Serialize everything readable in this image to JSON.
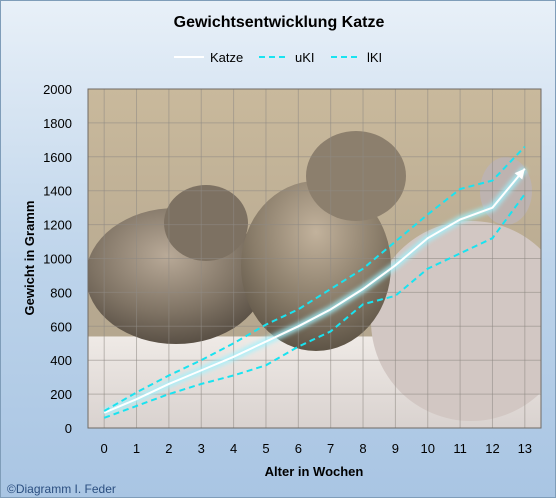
{
  "chart_data": {
    "type": "line",
    "title": "Gewichtsentwicklung Katze",
    "xlabel": "Alter in Wochen",
    "ylabel": "Gewicht in Gramm",
    "x": [
      0,
      1,
      2,
      3,
      4,
      5,
      6,
      7,
      8,
      9,
      10,
      11,
      12,
      13
    ],
    "xlim": [
      -0.5,
      13.5
    ],
    "ylim": [
      0,
      2000
    ],
    "yticks": [
      0,
      200,
      400,
      600,
      800,
      1000,
      1200,
      1400,
      1600,
      1800,
      2000
    ],
    "grid": true,
    "legend_position": "top",
    "series": [
      {
        "name": "Katze",
        "style": "solid-glow",
        "color": "#ffffff",
        "values": [
          90,
          170,
          260,
          340,
          420,
          510,
          600,
          700,
          820,
          960,
          1120,
          1230,
          1300,
          1530
        ]
      },
      {
        "name": "uKI",
        "style": "dashed",
        "color": "#19e3f0",
        "values": [
          100,
          210,
          310,
          400,
          500,
          610,
          700,
          820,
          940,
          1100,
          1260,
          1410,
          1460,
          1660
        ]
      },
      {
        "name": "lKI",
        "style": "dashed",
        "color": "#19e3f0",
        "values": [
          60,
          130,
          200,
          260,
          310,
          370,
          480,
          570,
          730,
          780,
          940,
          1030,
          1120,
          1380
        ]
      }
    ]
  },
  "credit": "©Diagramm I. Feder",
  "background_photo": "kittens"
}
